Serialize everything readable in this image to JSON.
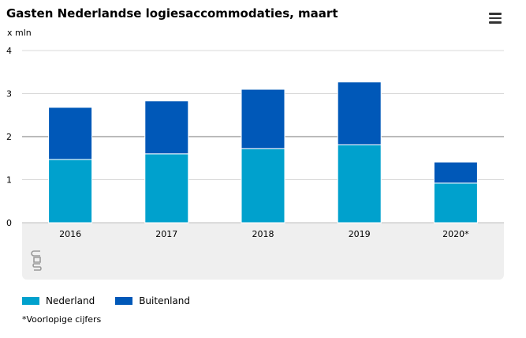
{
  "title": "Gasten Nederlandse logiesaccommodaties, maart",
  "unit_label": "x mln",
  "menu_icon": "hamburger-menu-icon",
  "logo_icon": "cbs-logo-icon",
  "colors": {
    "Nederland": "#00a1cd",
    "Buitenland": "#0058b8"
  },
  "chart_data": {
    "type": "bar",
    "stacked": true,
    "title": "Gasten Nederlandse logiesaccommodaties, maart",
    "ylabel": "x mln",
    "ylim": [
      0,
      4
    ],
    "yticks": [
      "0",
      "1",
      "2",
      "3",
      "4"
    ],
    "categories": [
      "2016",
      "2017",
      "2018",
      "2019",
      "2020*"
    ],
    "series": [
      {
        "name": "Nederland",
        "values": [
          1.47,
          1.6,
          1.72,
          1.81,
          0.92
        ]
      },
      {
        "name": "Buitenland",
        "values": [
          1.21,
          1.23,
          1.38,
          1.46,
          0.49
        ]
      }
    ],
    "grid": true,
    "legend_position": "bottom-left"
  },
  "legend": [
    {
      "label": "Nederland"
    },
    {
      "label": "Buitenland"
    }
  ],
  "footnote": "*Voorlopige cijfers"
}
